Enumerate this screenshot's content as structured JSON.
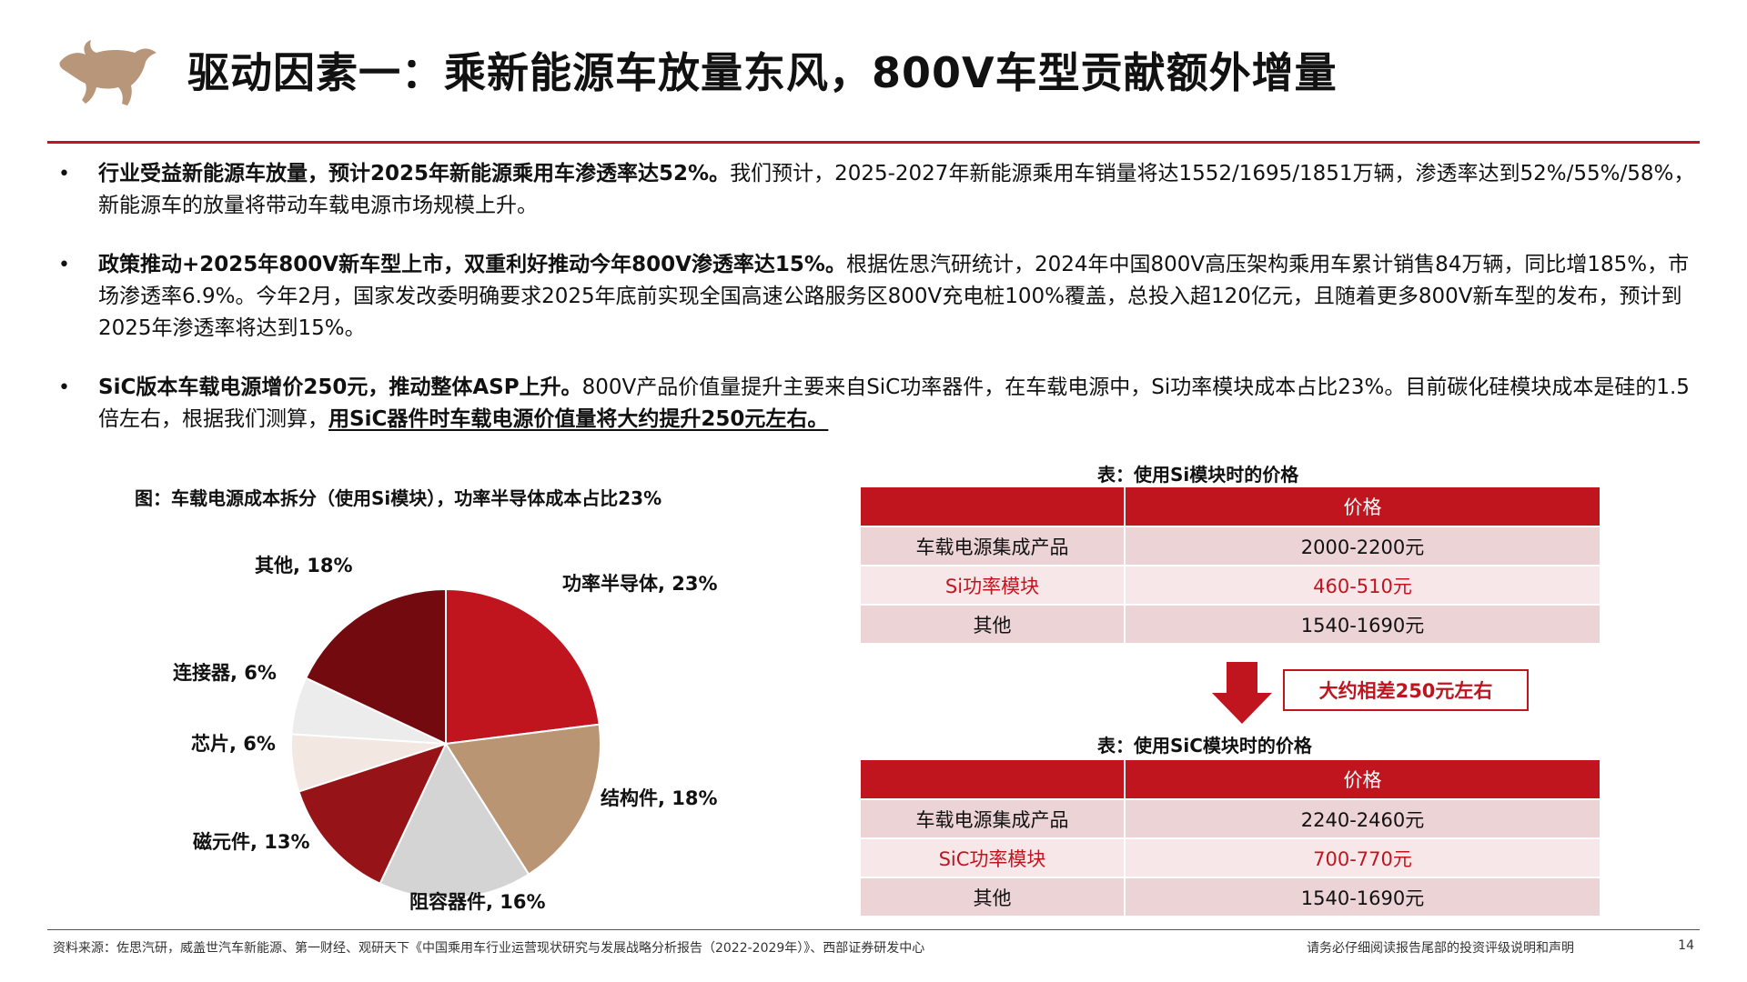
{
  "header": {
    "title": "驱动因素一：乘新能源车放量东风，800V车型贡献额外增量",
    "logo_icon": "bull-logo-icon",
    "logo_color": "#b8967a"
  },
  "bullets": [
    {
      "bold": "行业受益新能源车放量，预计2025年新能源乘用车渗透率达52%。",
      "text": "我们预计，2025-2027年新能源乘用车销量将达1552/1695/1851万辆，渗透率达到52%/55%/58%，新能源车的放量将带动车载电源市场规模上升。",
      "underline": ""
    },
    {
      "bold": "政策推动+2025年800V新车型上市，双重利好推动今年800V渗透率达15%。",
      "text": "根据佐思汽研统计，2024年中国800V高压架构乘用车累计销售84万辆，同比增185%，市场渗透率6.9%。今年2月，国家发改委明确要求2025年底前实现全国高速公路服务区800V充电桩100%覆盖，总投入超120亿元，且随着更多800V新车型的发布，预计到2025年渗透率将达到15%。",
      "underline": ""
    },
    {
      "bold": "SiC版本车载电源增价250元，推动整体ASP上升。",
      "text": "800V产品价值量提升主要来自SiC功率器件，在车载电源中，Si功率模块成本占比23%。目前碳化硅模块成本是硅的1.5倍左右，根据我们测算，",
      "underline": "用SiC器件时车载电源价值量将大约提升250元左右。"
    }
  ],
  "chart": {
    "caption": "图：车载电源成本拆分（使用Si模块），功率半导体成本占比23%"
  },
  "chart_data": {
    "type": "pie",
    "title": "图：车载电源成本拆分（使用Si模块），功率半导体成本占比23%",
    "slices": [
      {
        "label": "功率半导体, 23%",
        "value": 23,
        "color": "#c0151f"
      },
      {
        "label": "结构件, 18%",
        "value": 18,
        "color": "#b99574"
      },
      {
        "label": "阻容器件, 16%",
        "value": 16,
        "color": "#d4d4d4"
      },
      {
        "label": "磁元件, 13%",
        "value": 13,
        "color": "#961418"
      },
      {
        "label": "芯片, 6%",
        "value": 6,
        "color": "#f3e7e1"
      },
      {
        "label": "连接器, 6%",
        "value": 6,
        "color": "#ececec"
      },
      {
        "label": "其他, 18%",
        "value": 18,
        "color": "#730a10"
      }
    ],
    "start_angle_deg": 0,
    "direction": "clockwise"
  },
  "table_si": {
    "caption": "表：使用Si模块时的价格",
    "header": [
      "",
      "价格"
    ],
    "rows": [
      {
        "name": "车载电源集成产品",
        "price": "2000-2200元",
        "highlight": false
      },
      {
        "name": "Si功率模块",
        "price": "460-510元",
        "highlight": true
      },
      {
        "name": "其他",
        "price": "1540-1690元",
        "highlight": false
      }
    ]
  },
  "difference": {
    "label": "大约相差250元左右",
    "arrow_icon": "down-arrow-icon"
  },
  "table_sic": {
    "caption": "表：使用SiC模块时的价格",
    "header": [
      "",
      "价格"
    ],
    "rows": [
      {
        "name": "车载电源集成产品",
        "price": "2240-2460元",
        "highlight": false
      },
      {
        "name": "SiC功率模块",
        "price": "700-770元",
        "highlight": true
      },
      {
        "name": "其他",
        "price": "1540-1690元",
        "highlight": false
      }
    ]
  },
  "footer": {
    "source": "资料来源：佐思汽研，威盖世汽车新能源、第一财经、观研天下《中国乘用车行业运营现状研究与发展战略分析报告（2022-2029年）》、西部证券研发中心",
    "disclaimer": "请务必仔细阅读报告尾部的投资评级说明和声明",
    "page": "14"
  },
  "colors": {
    "accent": "#c0151f",
    "table_row": "#ecd3d5",
    "table_row_alt": "#f7e7e8"
  }
}
